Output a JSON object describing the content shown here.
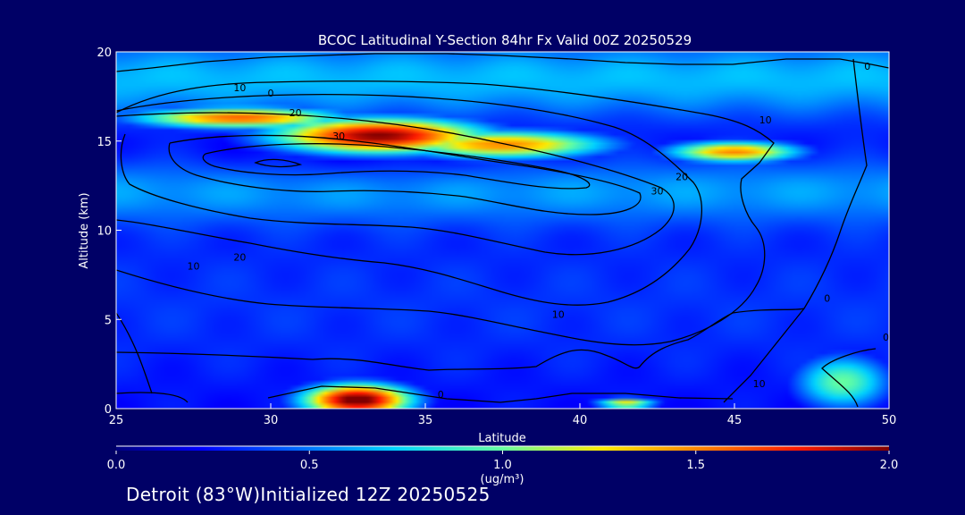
{
  "chart_data": {
    "type": "heatmap",
    "title": "BCOC Latitudinal Y-Section 84hr  Fx Valid 00Z 20250529",
    "xlabel": "Latitude",
    "ylabel": "Altitude (km)",
    "xlim": [
      25,
      50
    ],
    "ylim": [
      0,
      20
    ],
    "x_ticks": [
      "25",
      "30",
      "35",
      "40",
      "45",
      "50"
    ],
    "y_ticks": [
      "0",
      "5",
      "10",
      "15",
      "20"
    ],
    "colorbar": {
      "min": 0.0,
      "max": 2.0,
      "ticks": [
        "0.0",
        "0.5",
        "1.0",
        "1.5",
        "2.0"
      ],
      "units": "(ug/m³)"
    },
    "concentration_features": [
      {
        "name": "upper-plume",
        "center": [
          33.5,
          15.3
        ],
        "radius": [
          3.5,
          1.0
        ],
        "value": 2.0
      },
      {
        "name": "upper-plume-west",
        "center": [
          29.0,
          16.3
        ],
        "radius": [
          3.5,
          0.6
        ],
        "value": 1.6
      },
      {
        "name": "upper-plume-east",
        "center": [
          37.5,
          14.8
        ],
        "radius": [
          3.5,
          0.8
        ],
        "value": 1.5
      },
      {
        "name": "upper-plume-north",
        "center": [
          45.0,
          14.4
        ],
        "radius": [
          2.2,
          0.6
        ],
        "value": 1.5
      },
      {
        "name": "surface-plume",
        "center": [
          32.8,
          0.5
        ],
        "radius": [
          1.8,
          0.9
        ],
        "value": 2.1
      },
      {
        "name": "surface-plume-north",
        "center": [
          41.5,
          0.3
        ],
        "radius": [
          1.0,
          0.3
        ],
        "value": 1.3
      },
      {
        "name": "boundary-layer-north",
        "center": [
          48.5,
          1.5
        ],
        "radius": [
          1.6,
          1.6
        ],
        "value": 1.0
      }
    ],
    "contour_labels": [
      {
        "text": "0",
        "lat": 30.0,
        "alt": 17.5
      },
      {
        "text": "10",
        "lat": 29.0,
        "alt": 17.8
      },
      {
        "text": "20",
        "lat": 30.8,
        "alt": 16.4
      },
      {
        "text": "30",
        "lat": 32.2,
        "alt": 15.1
      },
      {
        "text": "30",
        "lat": 42.5,
        "alt": 12.0
      },
      {
        "text": "20",
        "lat": 43.3,
        "alt": 12.8
      },
      {
        "text": "10",
        "lat": 46.0,
        "alt": 16.0
      },
      {
        "text": "0",
        "lat": 49.3,
        "alt": 19.0
      },
      {
        "text": "20",
        "lat": 29.0,
        "alt": 8.3
      },
      {
        "text": "10",
        "lat": 27.5,
        "alt": 7.8
      },
      {
        "text": "10",
        "lat": 39.3,
        "alt": 5.1
      },
      {
        "text": "0",
        "lat": 48.0,
        "alt": 6.0
      },
      {
        "text": "0",
        "lat": 49.9,
        "alt": 3.8
      },
      {
        "text": "0",
        "lat": 35.5,
        "alt": 0.6
      },
      {
        "text": "10",
        "lat": 45.8,
        "alt": 1.2
      }
    ]
  },
  "footer": {
    "text": "Detroit (83°W)Initialized 12Z 20250525"
  }
}
